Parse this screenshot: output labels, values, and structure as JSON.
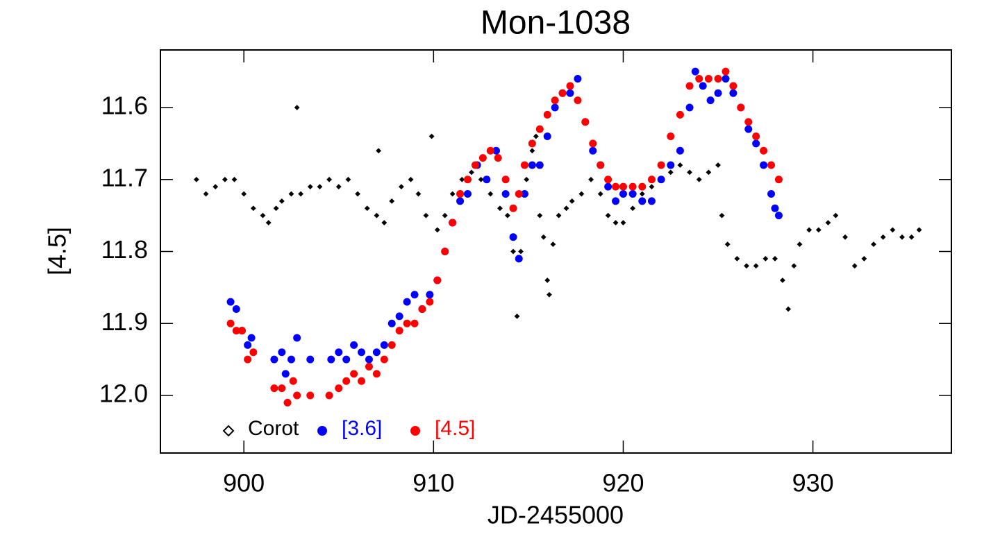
{
  "chart_data": {
    "type": "scatter",
    "title": "Mon-1038",
    "x_label": "JD-2455000",
    "y_label": "[4.5]",
    "xlim": [
      895.6,
      937.3
    ],
    "ylim": [
      12.08,
      11.52
    ],
    "xticks": [
      900,
      910,
      920,
      930
    ],
    "yticks": [
      11.6,
      11.7,
      11.8,
      11.9,
      {
        "value": 12.0,
        "label": "12.0"
      }
    ],
    "legend": "lower left",
    "series": [
      {
        "name": "Corot",
        "color": "#000000",
        "marker": "diamond",
        "x": [
          897.5,
          898,
          898.5,
          899,
          899.5,
          900,
          900.5,
          901,
          901.3,
          901.7,
          902,
          902.5,
          902.8,
          903,
          903.5,
          904,
          904.5,
          905,
          905.5,
          906,
          906.5,
          907,
          907.1,
          907.4,
          907.8,
          908.3,
          908.8,
          909.2,
          909.6,
          909.9,
          910.2,
          910.6,
          911,
          911.5,
          912,
          912.5,
          913,
          913.5,
          913.9,
          914.2,
          914.4,
          914.6,
          914.9,
          915.2,
          915.4,
          915.6,
          915.8,
          916,
          916.1,
          916.3,
          916.6,
          917,
          917.3,
          917.8,
          918.3,
          918.8,
          919.2,
          919.6,
          920,
          920.5,
          921,
          921.5,
          922,
          922.5,
          923,
          923.5,
          924,
          924.5,
          925,
          925.2,
          925.5,
          926,
          926.5,
          927,
          927.5,
          928,
          928.4,
          928.7,
          929,
          929.3,
          929.8,
          930.3,
          930.8,
          931.2,
          931.7,
          932.2,
          932.7,
          933.2,
          933.7,
          934.2,
          934.7,
          935.2,
          935.6
        ],
        "values": [
          11.7,
          11.72,
          11.71,
          11.7,
          11.7,
          11.72,
          11.74,
          11.75,
          11.76,
          11.74,
          11.73,
          11.72,
          11.6,
          11.72,
          11.71,
          11.71,
          11.7,
          11.71,
          11.7,
          11.72,
          11.74,
          11.75,
          11.66,
          11.76,
          11.73,
          11.71,
          11.7,
          11.72,
          11.75,
          11.64,
          11.77,
          11.75,
          11.72,
          11.7,
          11.69,
          11.7,
          11.72,
          11.74,
          11.75,
          11.8,
          11.89,
          11.8,
          11.7,
          11.66,
          11.64,
          11.75,
          11.78,
          11.84,
          11.86,
          11.79,
          11.75,
          11.74,
          11.73,
          11.72,
          11.7,
          11.72,
          11.75,
          11.76,
          11.76,
          11.74,
          11.72,
          11.71,
          11.7,
          11.69,
          11.68,
          11.69,
          11.7,
          11.69,
          11.68,
          11.75,
          11.79,
          11.81,
          11.82,
          11.82,
          11.81,
          11.81,
          11.84,
          11.88,
          11.82,
          11.79,
          11.77,
          11.77,
          11.76,
          11.75,
          11.78,
          11.82,
          11.81,
          11.79,
          11.78,
          11.77,
          11.78,
          11.78,
          11.77
        ]
      },
      {
        "name": "[3.6]",
        "color": "#0000ff",
        "marker": "circle",
        "x": [
          899.3,
          899.6,
          899.9,
          900.2,
          900.4,
          901.6,
          902,
          902.2,
          902.5,
          902.8,
          903.5,
          904.6,
          905,
          905.4,
          905.8,
          906.2,
          906.6,
          907,
          907.4,
          907.8,
          908.2,
          908.6,
          909,
          909.4,
          909.8,
          910.2,
          910.6,
          911,
          911.4,
          911.8,
          912.3,
          912.8,
          913.3,
          913.8,
          914.2,
          914.5,
          914.8,
          915.2,
          915.6,
          916,
          916.4,
          916.8,
          917.2,
          917.6,
          918,
          918.4,
          918.8,
          919.2,
          919.6,
          920,
          920.5,
          921,
          921.5,
          922,
          922.5,
          923,
          923.5,
          923.8,
          924.2,
          924.6,
          925,
          925.4,
          925.8,
          926.2,
          926.6,
          927,
          927.4,
          927.8,
          928,
          928.2
        ],
        "values": [
          11.87,
          11.88,
          11.91,
          11.93,
          11.92,
          11.95,
          11.94,
          11.97,
          11.95,
          11.92,
          11.95,
          11.95,
          11.94,
          11.95,
          11.93,
          11.94,
          11.95,
          11.94,
          11.93,
          11.9,
          11.89,
          11.87,
          11.86,
          11.88,
          11.86,
          11.84,
          11.8,
          11.76,
          11.73,
          11.72,
          11.68,
          11.7,
          11.66,
          11.72,
          11.78,
          11.81,
          11.72,
          11.68,
          11.68,
          11.64,
          11.6,
          11.58,
          11.58,
          11.56,
          11.62,
          11.66,
          11.68,
          11.71,
          11.73,
          11.72,
          11.72,
          11.73,
          11.73,
          11.7,
          11.68,
          11.66,
          11.6,
          11.55,
          11.57,
          11.59,
          11.58,
          11.56,
          11.58,
          11.6,
          11.63,
          11.65,
          11.68,
          11.72,
          11.74,
          11.75
        ]
      },
      {
        "name": "[4.5]",
        "color": "#ff0000",
        "marker": "circle",
        "x": [
          899.3,
          899.6,
          899.9,
          900.2,
          900.5,
          901.6,
          902,
          902.3,
          902.6,
          902.8,
          903.5,
          904.5,
          905,
          905.4,
          905.8,
          906.2,
          906.6,
          907,
          907.4,
          907.8,
          908.2,
          908.6,
          909,
          909.4,
          909.8,
          910.2,
          910.6,
          911,
          911.4,
          911.8,
          912.2,
          912.6,
          913,
          913.4,
          913.8,
          914.2,
          914.5,
          914.8,
          915.2,
          915.6,
          916,
          916.4,
          916.8,
          917.2,
          917.6,
          918,
          918.4,
          918.8,
          919.2,
          919.6,
          920,
          920.5,
          921,
          921.5,
          922,
          922.5,
          923,
          923.5,
          924,
          924.5,
          925,
          925.4,
          925.8,
          926.2,
          926.6,
          927,
          927.4,
          927.8,
          928.2
        ],
        "values": [
          11.9,
          11.91,
          11.91,
          11.95,
          11.94,
          11.99,
          11.99,
          12.01,
          11.98,
          12.0,
          12.0,
          12.0,
          11.99,
          11.98,
          11.97,
          11.98,
          11.96,
          11.97,
          11.95,
          11.93,
          11.91,
          11.9,
          11.9,
          11.88,
          11.87,
          11.84,
          11.8,
          11.76,
          11.72,
          11.7,
          11.68,
          11.67,
          11.66,
          11.67,
          11.7,
          11.74,
          11.72,
          11.68,
          11.65,
          11.63,
          11.61,
          11.59,
          11.58,
          11.57,
          11.59,
          11.62,
          11.65,
          11.68,
          11.7,
          11.71,
          11.71,
          11.71,
          11.71,
          11.7,
          11.68,
          11.64,
          11.61,
          11.57,
          11.56,
          11.56,
          11.56,
          11.55,
          11.57,
          11.6,
          11.62,
          11.64,
          11.66,
          11.68,
          11.7
        ]
      }
    ]
  }
}
